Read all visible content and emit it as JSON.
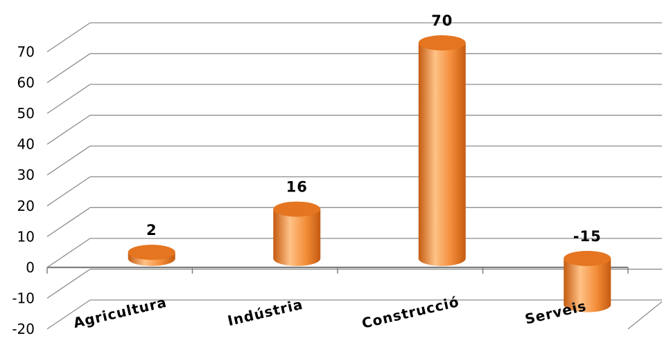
{
  "chart_data": {
    "type": "bar",
    "style": "3d-cylinder",
    "categories": [
      "Agricultura",
      "Indústria",
      "Construcció",
      "Serveis"
    ],
    "values": [
      2,
      16,
      70,
      -15
    ],
    "data_labels": [
      "2",
      "16",
      "70",
      "-15"
    ],
    "title": "",
    "xlabel": "",
    "ylabel": "",
    "ylim": [
      -20,
      70
    ],
    "yticks": [
      70,
      60,
      50,
      40,
      30,
      20,
      10,
      0,
      -10,
      -20
    ],
    "ytick_labels": [
      "70",
      "60",
      "50",
      "40",
      "30",
      "20",
      "10",
      "0",
      "-10",
      "-20"
    ],
    "grid": true,
    "legend": "none",
    "colors": {
      "bar_side": "#f28c38",
      "bar_light": "#ffc287",
      "bar_dark": "#c45a10",
      "bar_top": "#e57520",
      "grid": "#8c8c8c"
    }
  }
}
